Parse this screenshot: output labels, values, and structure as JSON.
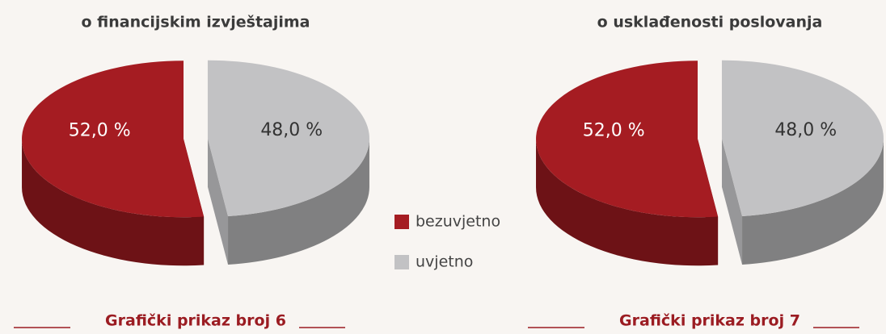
{
  "chart_data": [
    {
      "type": "pie",
      "title": "o financijskim izvještajima",
      "categories": [
        "bezuvjetno",
        "uvjetno"
      ],
      "values": [
        52.0,
        48.0
      ],
      "value_labels": [
        "52,0 %",
        "48,0 %"
      ],
      "colors": [
        "#a51c22",
        "#c2c2c4"
      ],
      "caption": "Grafički prikaz broj 6"
    },
    {
      "type": "pie",
      "title": "o usklađenosti poslovanja",
      "categories": [
        "bezuvjetno",
        "uvjetno"
      ],
      "values": [
        52.0,
        48.0
      ],
      "value_labels": [
        "52,0 %",
        "48,0 %"
      ],
      "colors": [
        "#a51c22",
        "#c2c2c4"
      ],
      "caption": "Grafički prikaz broj 7"
    }
  ]
}
